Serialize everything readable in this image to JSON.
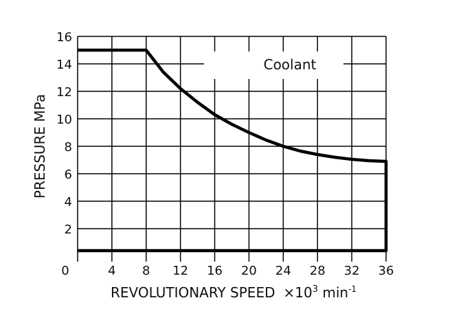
{
  "chart_data": {
    "type": "line",
    "title": "",
    "xlabel": "REVOLUTIONARY SPEED",
    "xunit_prefix": "×10",
    "xunit_exp": "3",
    "xunit_tail": " min",
    "xunit_tail_exp": "-1",
    "ylabel": "PRESSURE MPa",
    "xlim": [
      0,
      36
    ],
    "ylim": [
      0,
      16
    ],
    "xticks": [
      0,
      4,
      8,
      12,
      16,
      20,
      24,
      28,
      32,
      36
    ],
    "yticks": [
      2,
      4,
      6,
      8,
      10,
      12,
      14,
      16
    ],
    "y_zero_label": "0",
    "grid": true,
    "annotation": "Coolant",
    "series": [
      {
        "x": [
          0,
          8,
          10,
          12,
          14,
          16,
          18,
          20,
          22,
          24,
          26,
          28,
          30,
          32,
          34,
          36,
          36,
          0
        ],
        "y": [
          15,
          15,
          13.4,
          12.2,
          11.2,
          10.3,
          9.6,
          9.0,
          8.45,
          8.0,
          7.65,
          7.4,
          7.2,
          7.05,
          6.95,
          6.9,
          0.4,
          0.4
        ]
      }
    ],
    "colors": {
      "line": "#000000",
      "grid": "#000000"
    }
  }
}
